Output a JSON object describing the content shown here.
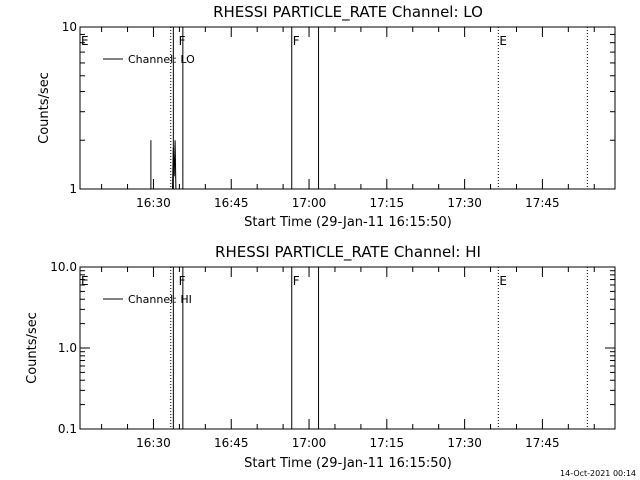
{
  "chart_data": [
    {
      "type": "line",
      "title": "RHESSI PARTICLE_RATE Channel: LO",
      "xlabel": "Start Time (29-Jan-11 16:15:50)",
      "ylabel": "Counts/sec",
      "y_scale": "log",
      "ylim": [
        1,
        10
      ],
      "xlim": [
        "16:15:50",
        "17:59:00"
      ],
      "x_ticks": [
        "16:30",
        "16:45",
        "17:00",
        "17:15",
        "17:30",
        "17:45"
      ],
      "y_ticks": [
        "1",
        "10"
      ],
      "legend": {
        "entry": "Channel: LO",
        "placement": "top-left"
      },
      "series": [
        {
          "name": "Channel: LO",
          "segments": [
            {
              "x": [
                "16:29:30",
                "16:29:30",
                "16:29:30"
              ],
              "y": [
                2.0,
                1.05,
                1.0
              ]
            },
            {
              "x": [
                "16:33:40",
                "16:33:50",
                "16:34:00",
                "16:34:10",
                "16:34:20"
              ],
              "y": [
                1.0,
                1.8,
                1.2,
                2.0,
                1.0
              ]
            }
          ]
        }
      ],
      "vertical_lines": [
        {
          "x": "16:33:20",
          "style": "dotted",
          "label": ""
        },
        {
          "x": "16:33:50",
          "style": "solid",
          "label": ""
        },
        {
          "x": "16:35:40",
          "style": "solid",
          "label": ""
        },
        {
          "x": "16:56:40",
          "style": "solid",
          "label": ""
        },
        {
          "x": "17:01:50",
          "style": "solid",
          "label": ""
        },
        {
          "x": "17:36:30",
          "style": "dotted",
          "label": ""
        },
        {
          "x": "17:53:40",
          "style": "dotted",
          "label": ""
        }
      ],
      "markers": [
        {
          "x": "16:15:50",
          "label": "E"
        },
        {
          "x": "16:34:40",
          "label": "F"
        },
        {
          "x": "16:56:40",
          "label": "F"
        },
        {
          "x": "17:36:30",
          "label": "E"
        }
      ]
    },
    {
      "type": "line",
      "title": "RHESSI PARTICLE_RATE Channel: HI",
      "xlabel": "Start Time (29-Jan-11 16:15:50)",
      "ylabel": "Counts/sec",
      "y_scale": "log",
      "ylim": [
        0.1,
        10
      ],
      "xlim": [
        "16:15:50",
        "17:59:00"
      ],
      "x_ticks": [
        "16:30",
        "16:45",
        "17:00",
        "17:15",
        "17:30",
        "17:45"
      ],
      "y_ticks": [
        "0.1",
        "1.0",
        "10.0"
      ],
      "legend": {
        "entry": "Channel: HI",
        "placement": "top-left"
      },
      "series": [
        {
          "name": "Channel: HI",
          "segments": []
        }
      ],
      "vertical_lines": [
        {
          "x": "16:33:20",
          "style": "dotted",
          "label": ""
        },
        {
          "x": "16:33:50",
          "style": "solid",
          "label": ""
        },
        {
          "x": "16:35:40",
          "style": "solid",
          "label": ""
        },
        {
          "x": "16:56:40",
          "style": "solid",
          "label": ""
        },
        {
          "x": "17:01:50",
          "style": "solid",
          "label": ""
        },
        {
          "x": "17:36:30",
          "style": "dotted",
          "label": ""
        },
        {
          "x": "17:53:40",
          "style": "dotted",
          "label": ""
        }
      ],
      "markers": [
        {
          "x": "16:15:50",
          "label": "E"
        },
        {
          "x": "16:34:40",
          "label": "F"
        },
        {
          "x": "16:56:40",
          "label": "F"
        },
        {
          "x": "17:36:30",
          "label": "E"
        }
      ]
    }
  ],
  "footer": {
    "timestamp": "14-Oct-2021 00:14"
  }
}
